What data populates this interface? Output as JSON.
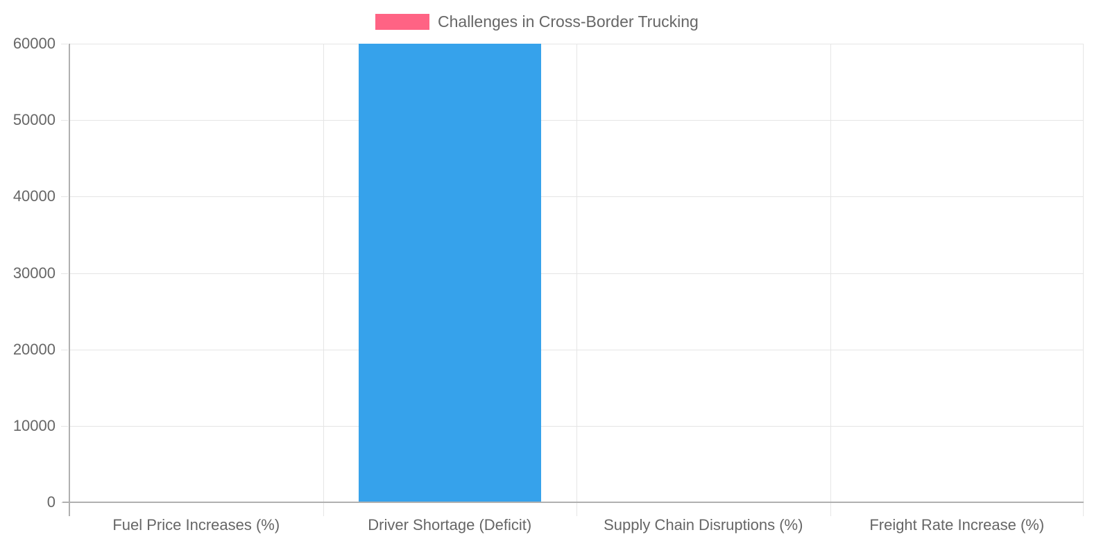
{
  "chart_data": {
    "type": "bar",
    "title": "",
    "legend": [
      {
        "label": "Challenges in Cross-Border Trucking",
        "color": "#ff6384"
      }
    ],
    "legend_position": "top",
    "categories": [
      "Fuel Price Increases (%)",
      "Driver Shortage (Deficit)",
      "Supply Chain Disruptions (%)",
      "Freight Rate Increase (%)"
    ],
    "series": [
      {
        "name": "Challenges in Cross-Border Trucking",
        "values": [
          20,
          60000,
          15,
          10
        ],
        "colors": [
          "#ff6384",
          "#36a2eb",
          "#ffce56",
          "#c9b29b"
        ]
      }
    ],
    "xlabel": "",
    "ylabel": "",
    "ylim": [
      0,
      60000
    ],
    "yticks": [
      "60000",
      "50000",
      "40000",
      "30000",
      "20000",
      "10000",
      "0"
    ],
    "grid": true
  }
}
